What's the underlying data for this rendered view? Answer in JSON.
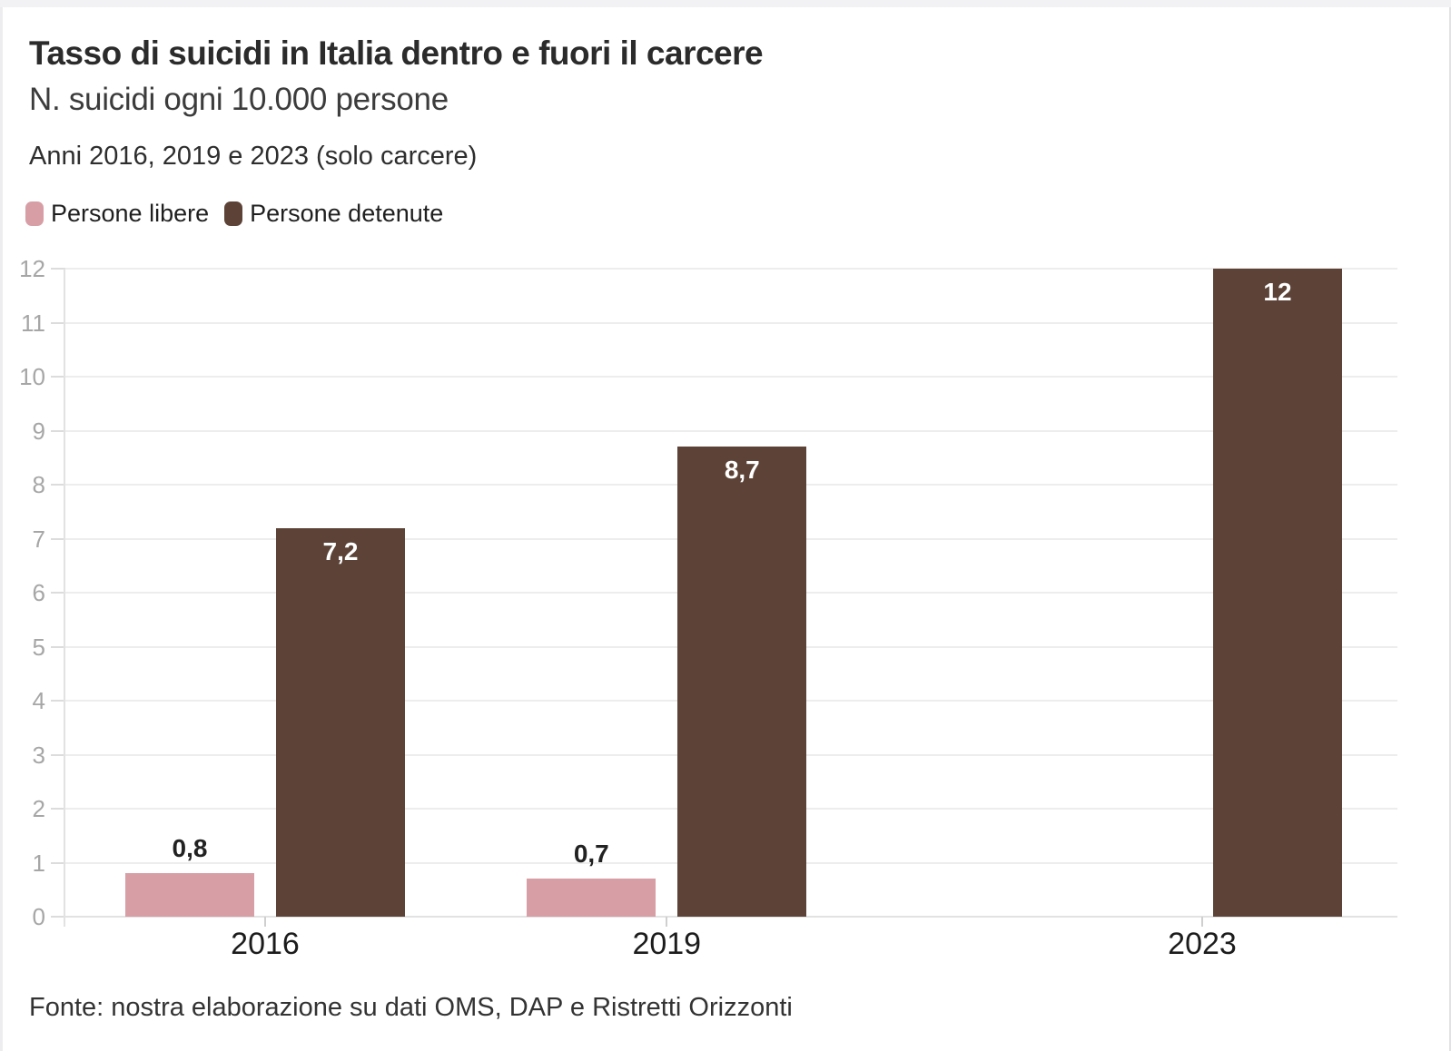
{
  "header": {
    "title": "Tasso di suicidi in Italia dentro e fuori il carcere",
    "subtitle": "N. suicidi ogni 10.000 persone",
    "note": "Anni 2016, 2019 e 2023 (solo carcere)"
  },
  "footer": {
    "source": "Fonte: nostra elaborazione su dati OMS, DAP e Ristretti Orizzonti"
  },
  "colors": {
    "persone_libere": "#d79ea6",
    "persone_detenute": "#5d4337",
    "gridline": "#ededed",
    "axis_labels": "#a6a6a6",
    "card_background": "#ffffff",
    "page_background": "#f2f2f4"
  },
  "chart_data": {
    "type": "bar",
    "title": "Tasso di suicidi in Italia dentro e fuori il carcere",
    "subtitle": "N. suicidi ogni 10.000 persone",
    "note": "Anni 2016, 2019 e 2023 (solo carcere)",
    "source": "Fonte: nostra elaborazione su dati OMS, DAP e Ristretti Orizzonti",
    "xlabel": "",
    "ylabel": "N. suicidi ogni 10.000 persone",
    "x_scale": "time-linear",
    "categories": [
      "2016",
      "2019",
      "2023"
    ],
    "x_values": [
      2016,
      2019,
      2023
    ],
    "series": [
      {
        "name": "Persone libere",
        "color": "#d79ea6",
        "values": [
          0.8,
          0.7,
          null
        ],
        "labels": [
          "0,8",
          "0,7",
          null
        ],
        "label_position": "above",
        "label_color": "#222222"
      },
      {
        "name": "Persone detenute",
        "color": "#5d4337",
        "values": [
          7.2,
          8.7,
          12
        ],
        "labels": [
          "7,2",
          "8,7",
          "12"
        ],
        "label_position": "inside-top",
        "label_color": "#ffffff"
      }
    ],
    "ylim": [
      0,
      12
    ],
    "yticks": [
      0,
      1,
      2,
      3,
      4,
      5,
      6,
      7,
      8,
      9,
      10,
      11,
      12
    ],
    "grid": true,
    "legend_position": "top-left"
  }
}
